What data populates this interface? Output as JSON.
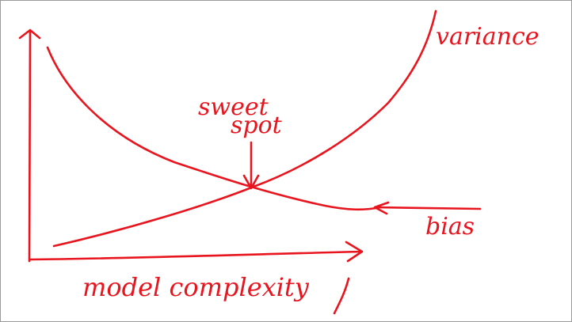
{
  "diagram": {
    "ink_color": "#e8141e",
    "labels": {
      "variance": "variance",
      "sweet_spot_line1": "sweet",
      "sweet_spot_line2": "spot",
      "bias": "bias",
      "x_axis": "model complexity"
    },
    "curves": [
      "variance",
      "bias"
    ],
    "pointers": [
      "sweet-spot-arrow",
      "bias-arrow"
    ]
  }
}
